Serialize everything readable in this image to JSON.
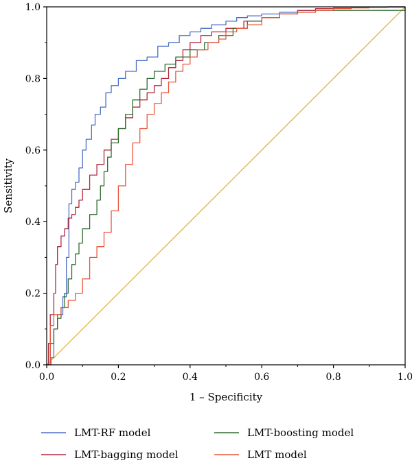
{
  "chart_data": {
    "type": "line",
    "title": "",
    "xlabel": "1 – Specificity",
    "ylabel": "Sensitivity",
    "xlim": [
      0,
      1
    ],
    "ylim": [
      0,
      1
    ],
    "xticks": [
      "0.0",
      "0.2",
      "0.4",
      "0.6",
      "0.8",
      "1.0"
    ],
    "yticks": [
      "0.0",
      "0.2",
      "0.4",
      "0.6",
      "0.8",
      "1.0"
    ],
    "grid": false,
    "legend_position": "bottom",
    "reference_line": {
      "x": [
        0,
        1
      ],
      "y": [
        0,
        1
      ],
      "color": "#e0b020"
    },
    "series": [
      {
        "name": "LMT-RF model",
        "color": "#4a6fc7",
        "x": [
          0.0,
          0.012,
          0.02,
          0.03,
          0.045,
          0.055,
          0.062,
          0.07,
          0.08,
          0.09,
          0.1,
          0.11,
          0.125,
          0.135,
          0.15,
          0.165,
          0.18,
          0.2,
          0.22,
          0.25,
          0.28,
          0.31,
          0.34,
          0.37,
          0.4,
          0.43,
          0.46,
          0.5,
          0.53,
          0.56,
          0.6,
          0.65,
          0.7,
          0.75,
          0.8,
          0.85,
          0.9,
          0.95,
          1.0
        ],
        "y": [
          0.0,
          0.02,
          0.1,
          0.14,
          0.19,
          0.3,
          0.45,
          0.49,
          0.51,
          0.55,
          0.6,
          0.63,
          0.67,
          0.7,
          0.72,
          0.76,
          0.78,
          0.8,
          0.82,
          0.85,
          0.86,
          0.89,
          0.9,
          0.92,
          0.93,
          0.94,
          0.95,
          0.96,
          0.97,
          0.975,
          0.98,
          0.985,
          0.99,
          0.995,
          0.996,
          0.998,
          0.999,
          1.0,
          1.0
        ]
      },
      {
        "name": "LMT-bagging model",
        "color": "#b0283c",
        "x": [
          0.0,
          0.005,
          0.01,
          0.02,
          0.025,
          0.03,
          0.04,
          0.05,
          0.06,
          0.07,
          0.08,
          0.09,
          0.1,
          0.12,
          0.14,
          0.16,
          0.18,
          0.2,
          0.22,
          0.24,
          0.26,
          0.28,
          0.3,
          0.32,
          0.34,
          0.36,
          0.38,
          0.4,
          0.43,
          0.46,
          0.5,
          0.55,
          0.6,
          0.65,
          0.7,
          0.75,
          0.8,
          0.85,
          0.9,
          0.95,
          1.0
        ],
        "y": [
          0.0,
          0.06,
          0.14,
          0.2,
          0.28,
          0.33,
          0.36,
          0.38,
          0.41,
          0.42,
          0.44,
          0.46,
          0.49,
          0.53,
          0.56,
          0.6,
          0.63,
          0.66,
          0.69,
          0.72,
          0.74,
          0.76,
          0.78,
          0.8,
          0.83,
          0.85,
          0.88,
          0.9,
          0.92,
          0.93,
          0.94,
          0.96,
          0.97,
          0.98,
          0.99,
          0.995,
          0.997,
          0.998,
          0.999,
          1.0,
          1.0
        ]
      },
      {
        "name": "LMT-boosting model",
        "color": "#2f6b2f",
        "x": [
          0.0,
          0.01,
          0.02,
          0.03,
          0.04,
          0.05,
          0.06,
          0.07,
          0.08,
          0.09,
          0.1,
          0.12,
          0.14,
          0.15,
          0.16,
          0.17,
          0.18,
          0.2,
          0.22,
          0.24,
          0.26,
          0.28,
          0.3,
          0.33,
          0.36,
          0.4,
          0.44,
          0.48,
          0.52,
          0.56,
          0.6,
          0.65,
          0.7,
          0.75,
          0.8,
          0.85,
          0.9,
          0.95,
          1.0
        ],
        "y": [
          0.0,
          0.06,
          0.1,
          0.13,
          0.16,
          0.2,
          0.24,
          0.28,
          0.31,
          0.34,
          0.38,
          0.42,
          0.46,
          0.5,
          0.54,
          0.58,
          0.62,
          0.66,
          0.7,
          0.74,
          0.77,
          0.8,
          0.82,
          0.84,
          0.86,
          0.88,
          0.9,
          0.92,
          0.94,
          0.96,
          0.97,
          0.98,
          0.985,
          0.99,
          0.99,
          0.99,
          0.99,
          0.99,
          1.0
        ]
      },
      {
        "name": "LMT model",
        "color": "#e8553a",
        "x": [
          0.0,
          0.01,
          0.02,
          0.04,
          0.06,
          0.08,
          0.1,
          0.12,
          0.14,
          0.16,
          0.18,
          0.2,
          0.22,
          0.24,
          0.26,
          0.28,
          0.3,
          0.32,
          0.34,
          0.36,
          0.38,
          0.4,
          0.42,
          0.45,
          0.48,
          0.5,
          0.53,
          0.56,
          0.6,
          0.65,
          0.7,
          0.75,
          0.8,
          0.85,
          0.9,
          0.95,
          1.0
        ],
        "y": [
          0.0,
          0.11,
          0.14,
          0.16,
          0.18,
          0.2,
          0.24,
          0.3,
          0.33,
          0.37,
          0.43,
          0.5,
          0.56,
          0.62,
          0.66,
          0.7,
          0.73,
          0.76,
          0.79,
          0.82,
          0.84,
          0.86,
          0.88,
          0.9,
          0.91,
          0.93,
          0.94,
          0.95,
          0.97,
          0.98,
          0.985,
          0.99,
          0.995,
          0.997,
          0.998,
          0.999,
          1.0
        ]
      }
    ]
  }
}
